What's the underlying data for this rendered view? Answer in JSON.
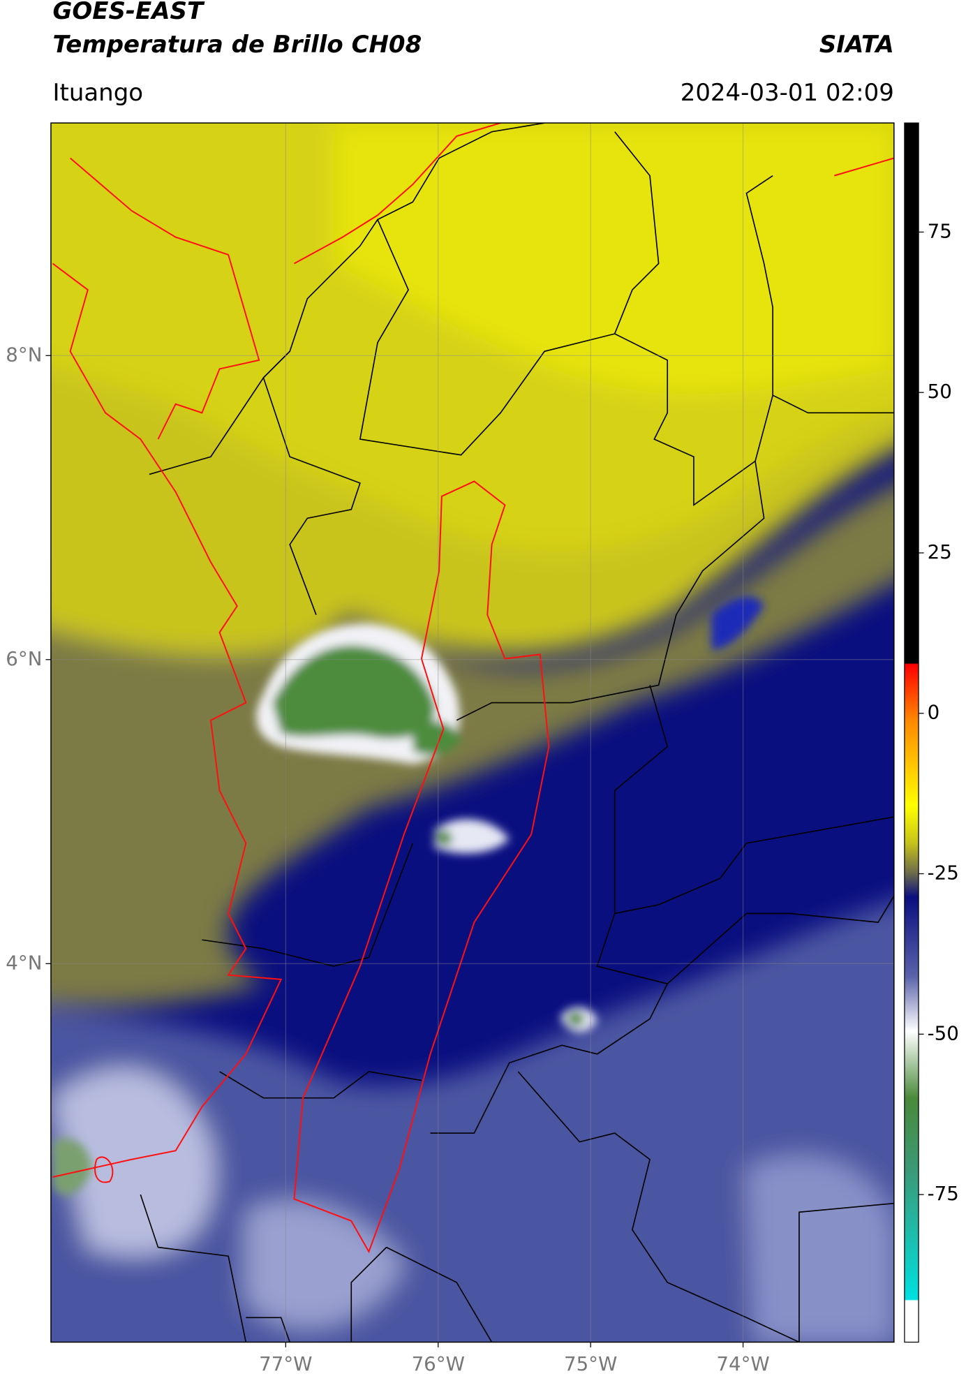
{
  "header": {
    "title": "GOES-EAST",
    "subtitle": "Temperatura de Brillo CH08",
    "brand": "SIATA",
    "location": "Ituango",
    "datetime": "2024-03-01 02:09"
  },
  "map": {
    "xlim": [
      -78.54,
      -73.01
    ],
    "ylim": [
      1.51,
      9.53
    ],
    "xticks": [
      {
        "value": -77,
        "label": "77°W"
      },
      {
        "value": -76,
        "label": "76°W"
      },
      {
        "value": -75,
        "label": "75°W"
      },
      {
        "value": -74,
        "label": "74°W"
      }
    ],
    "yticks": [
      {
        "value": 8,
        "label": "8°N"
      },
      {
        "value": 6,
        "label": "6°N"
      },
      {
        "value": 4,
        "label": "4°N"
      }
    ],
    "grid": true
  },
  "colorbar": {
    "lim": [
      -98,
      92
    ],
    "ticks": [
      75,
      50,
      25,
      0,
      -25,
      -50,
      -75
    ]
  }
}
